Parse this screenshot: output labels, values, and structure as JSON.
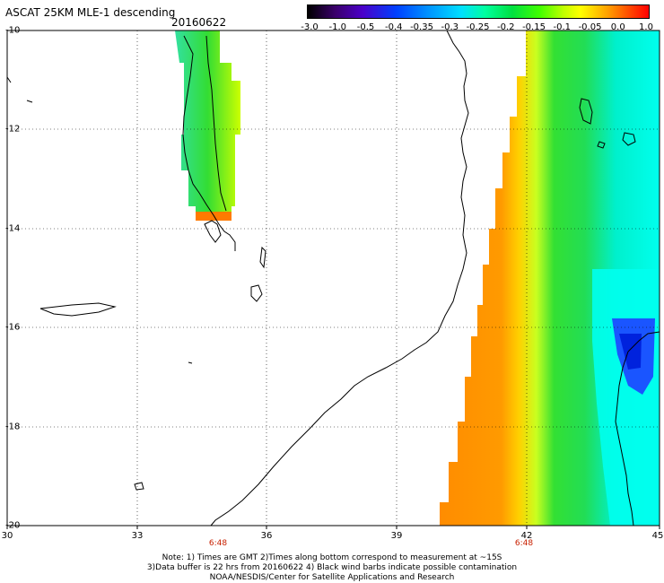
{
  "header": {
    "title": "ASCAT 25KM MLE-1 descending",
    "date": "20160622"
  },
  "colorbar": {
    "ticks": [
      "-3.0",
      "-1.0",
      "-0.5",
      "-0.4",
      "-0.35",
      "-0.3",
      "-0.25",
      "-0.2",
      "-0.15",
      "-0.1",
      "-0.05",
      "0.0",
      "1.0"
    ]
  },
  "axes": {
    "x_ticks": [
      "30",
      "33",
      "36",
      "39",
      "42",
      "45"
    ],
    "y_ticks": [
      "-10",
      "-12",
      "-14",
      "-16",
      "-18",
      "-20"
    ]
  },
  "overpass_times": [
    "6:48",
    "6:48"
  ],
  "notes": {
    "line1": "Note: 1) Times are GMT 2)Times along bottom correspond to measurement at ~15S",
    "line2": "3)Data buffer is 22 hrs from 20160622 4) Black wind barbs indicate possible contamination",
    "line3": "NOAA/NESDIS/Center for Satellite Applications and Research"
  },
  "colors": {
    "orange": "#ff8c00",
    "green": "#33dd33",
    "cyan": "#00ffee",
    "blue": "#0044ff",
    "yellow": "#ddff00"
  }
}
